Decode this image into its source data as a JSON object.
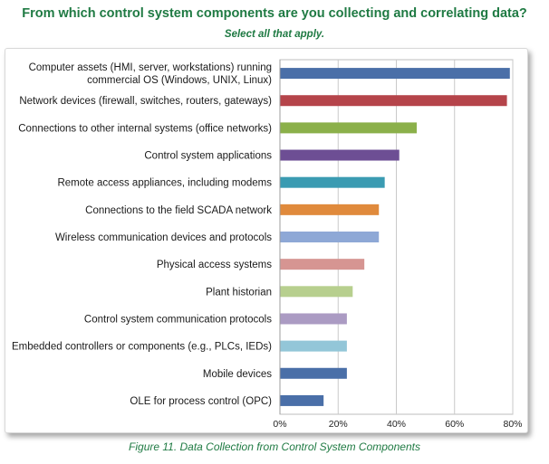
{
  "title": "From which control system components are you collecting and correlating data?",
  "subtitle": "Select all that apply.",
  "caption": "Figure 11. Data Collection from Control System Components",
  "chart_data": {
    "type": "bar",
    "orientation": "horizontal",
    "categories": [
      [
        "Computer assets (HMI, server, workstations) running",
        "commercial OS (Windows, UNIX, Linux)"
      ],
      [
        "Network devices (firewall, switches, routers, gateways)"
      ],
      [
        "Connections to other internal systems (office networks)"
      ],
      [
        "Control system applications"
      ],
      [
        "Remote access appliances, including modems"
      ],
      [
        "Connections to the field SCADA network"
      ],
      [
        "Wireless communication devices and protocols"
      ],
      [
        "Physical access systems"
      ],
      [
        "Plant historian"
      ],
      [
        "Control system communication protocols"
      ],
      [
        "Embedded controllers or components (e.g., PLCs, IEDs)"
      ],
      [
        "Mobile devices"
      ],
      [
        "OLE for process control (OPC)"
      ]
    ],
    "values": [
      79,
      78,
      47,
      41,
      36,
      34,
      34,
      29,
      25,
      23,
      23,
      23,
      15
    ],
    "colors": [
      "#4a6fa8",
      "#b5444a",
      "#8bb04a",
      "#6d4e94",
      "#3a9bb2",
      "#e08a3c",
      "#8ea8d6",
      "#d69592",
      "#b7cf8e",
      "#ab9bc3",
      "#93c6d8",
      "#4a6fa8",
      "#4a6fa8"
    ],
    "xlim": [
      0,
      80
    ],
    "xticks": [
      0,
      20,
      40,
      60,
      80
    ],
    "xtick_labels": [
      "0%",
      "20%",
      "40%",
      "60%",
      "80%"
    ],
    "xlabel": "",
    "ylabel": "",
    "grid": true
  }
}
